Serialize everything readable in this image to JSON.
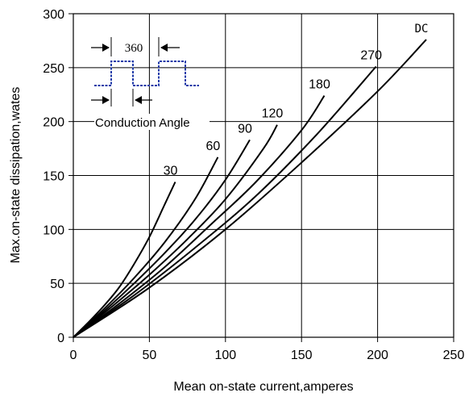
{
  "chart_data": {
    "type": "line",
    "xlabel": "Mean on-state current,amperes",
    "ylabel": "Max.on-state dissipation,wates",
    "xlim": [
      0,
      250
    ],
    "ylim": [
      0,
      300
    ],
    "x_ticks": [
      "0",
      "50",
      "100",
      "150",
      "200",
      "250"
    ],
    "y_ticks": [
      "0",
      "50",
      "100",
      "150",
      "200",
      "250",
      "300"
    ],
    "grid": true,
    "series": [
      {
        "name": "30",
        "x": [
          0,
          10,
          20,
          30,
          40,
          50,
          60,
          67
        ],
        "y": [
          0,
          14,
          29,
          46,
          68,
          93,
          123,
          144
        ]
      },
      {
        "name": "60",
        "x": [
          0,
          20,
          40,
          60,
          80,
          95
        ],
        "y": [
          0,
          26,
          55,
          88,
          128,
          167
        ]
      },
      {
        "name": "90",
        "x": [
          0,
          20,
          40,
          60,
          80,
          100,
          116
        ],
        "y": [
          0,
          24,
          50,
          78,
          109,
          146,
          183
        ]
      },
      {
        "name": "120",
        "x": [
          0,
          25,
          50,
          75,
          100,
          125,
          134
        ],
        "y": [
          0,
          28,
          58,
          91,
          128,
          175,
          197
        ]
      },
      {
        "name": "180",
        "x": [
          0,
          30,
          60,
          90,
          120,
          150,
          165
        ],
        "y": [
          0,
          31,
          65,
          104,
          144,
          192,
          224
        ]
      },
      {
        "name": "270",
        "x": [
          0,
          40,
          80,
          120,
          160,
          199
        ],
        "y": [
          0,
          39,
          83,
          131,
          188,
          251
        ]
      },
      {
        "name": "DC",
        "x": [
          0,
          50,
          100,
          150,
          200,
          232
        ],
        "y": [
          0,
          46,
          100,
          162,
          228,
          276
        ]
      }
    ],
    "inset": {
      "period_label": "360",
      "conduction_label": "Conduction Angle",
      "waveform_color": "#1f3aa8"
    }
  }
}
